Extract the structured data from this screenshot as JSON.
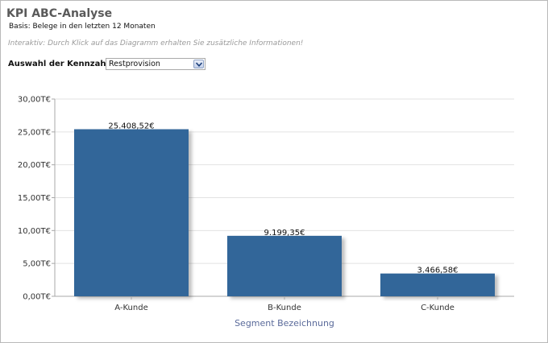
{
  "header": {
    "title": "KPI ABC-Analyse",
    "subtitle": "Basis: Belege in den letzten 12 Monaten",
    "hint": "Interaktiv: Durch Klick auf das Diagramm erhalten Sie zusätzliche Informationen!"
  },
  "selector": {
    "label": "Auswahl der Kennzahl",
    "value": "Restprovision",
    "icon": "chevron-down-icon"
  },
  "colors": {
    "bar": "#336699",
    "grid": "#e2e2e2",
    "axis": "#a8a8a8"
  },
  "chart_data": {
    "type": "bar",
    "categories": [
      "A-Kunde",
      "B-Kunde",
      "C-Kunde"
    ],
    "values": [
      25408.52,
      9199.35,
      3466.58
    ],
    "data_labels": [
      "25.408,52€",
      "9.199,35€",
      "3.466,58€"
    ],
    "y_ticks": [
      0,
      5000,
      10000,
      15000,
      20000,
      25000,
      30000
    ],
    "y_tick_labels": [
      "0,00T€",
      "5,00T€",
      "10,00T€",
      "15,00T€",
      "20,00T€",
      "25,00T€",
      "30,00T€"
    ],
    "ylim": [
      0,
      30000
    ],
    "xlabel": "Segment Bezeichnung",
    "ylabel": "",
    "grid": true
  }
}
